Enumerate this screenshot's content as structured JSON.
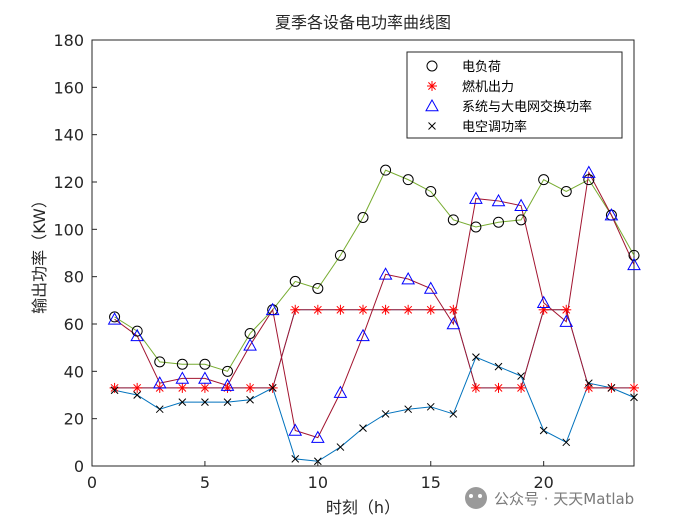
{
  "chart_data": {
    "type": "line",
    "title": "夏季各设备电功率曲线图",
    "xlabel": "时刻（h）",
    "ylabel": "输出功率（KW）",
    "xlim": [
      0,
      24
    ],
    "ylim": [
      0,
      180
    ],
    "xticks": [
      0,
      5,
      10,
      15,
      20
    ],
    "yticks": [
      0,
      20,
      40,
      60,
      80,
      100,
      120,
      140,
      160,
      180
    ],
    "grid": false,
    "legend_position": "top-right",
    "x": [
      1,
      2,
      3,
      4,
      5,
      6,
      7,
      8,
      9,
      10,
      11,
      12,
      13,
      14,
      15,
      16,
      17,
      18,
      19,
      20,
      21,
      22,
      23,
      24
    ],
    "series": [
      {
        "name": "电负荷",
        "marker": "circle",
        "line_color": "#77ac30",
        "marker_color": "#000000",
        "values": [
          63,
          57,
          44,
          43,
          43,
          40,
          56,
          66,
          78,
          75,
          89,
          105,
          125,
          121,
          116,
          104,
          101,
          103,
          104,
          121,
          116,
          121,
          106,
          89
        ]
      },
      {
        "name": "燃机出力",
        "marker": "asterisk",
        "line_color": "#a2142f",
        "marker_color": "#ff0000",
        "values": [
          33,
          33,
          33,
          33,
          33,
          33,
          33,
          33,
          66,
          66,
          66,
          66,
          66,
          66,
          66,
          66,
          33,
          33,
          33,
          66,
          66,
          33,
          33,
          33
        ]
      },
      {
        "name": "系统与大电网交换功率",
        "marker": "triangle",
        "line_color": "#a2142f",
        "marker_color": "#0000ff",
        "values": [
          62,
          55,
          35,
          37,
          37,
          34,
          51,
          66,
          15,
          12,
          31,
          55,
          81,
          79,
          75,
          60,
          113,
          112,
          110,
          69,
          61,
          124,
          106,
          85
        ]
      },
      {
        "name": "电空调功率",
        "marker": "x",
        "line_color": "#0072bd",
        "marker_color": "#000000",
        "values": [
          32,
          30,
          24,
          27,
          27,
          27,
          28,
          33,
          3,
          2,
          8,
          16,
          22,
          24,
          25,
          22,
          46,
          42,
          38,
          15,
          10,
          35,
          33,
          29
        ]
      },
      {
        "marker": "none",
        "line_color": "#4dbeee",
        "values": [
          33,
          33,
          33,
          33,
          33,
          33,
          33,
          33,
          66,
          66,
          66,
          66,
          66,
          66,
          66,
          66,
          33,
          33,
          33,
          66,
          66,
          33,
          33,
          33
        ]
      }
    ]
  },
  "watermark": {
    "text": "公众号 · 天天Matlab"
  }
}
